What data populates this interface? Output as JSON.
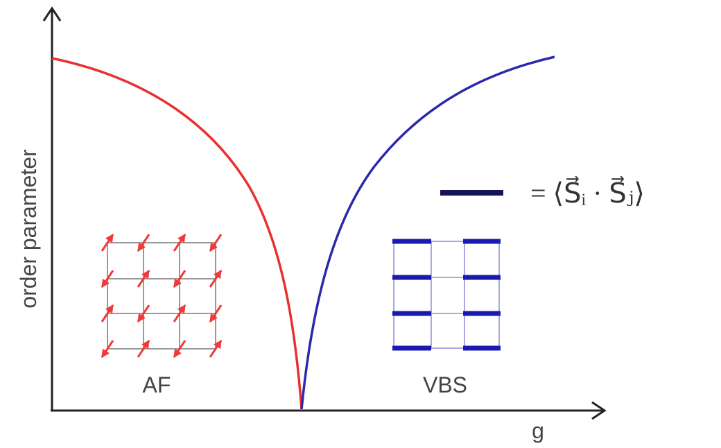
{
  "axes": {
    "y_label": "order parameter",
    "x_label": "g"
  },
  "phases": [
    {
      "label": "AF"
    },
    {
      "label": "VBS"
    }
  ],
  "legend": {
    "label": "= ⟨S⃗ᵢ · S⃗ⱼ⟩"
  }
}
